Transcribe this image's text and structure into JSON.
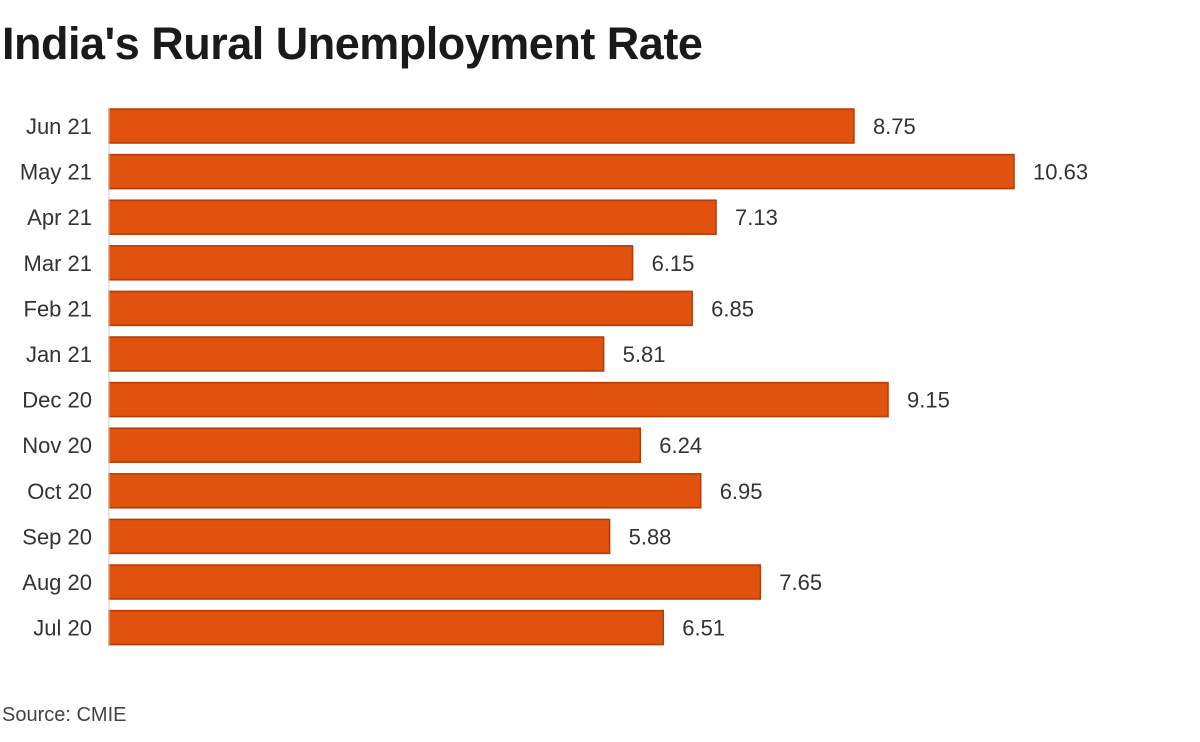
{
  "chart_data": {
    "type": "bar",
    "orientation": "horizontal",
    "title": "India's Rural Unemployment Rate",
    "categories": [
      "Jun 21",
      "May 21",
      "Apr 21",
      "Mar 21",
      "Feb 21",
      "Jan 21",
      "Dec 20",
      "Nov 20",
      "Oct 20",
      "Sep 20",
      "Aug 20",
      "Jul 20"
    ],
    "values": [
      8.75,
      10.63,
      7.13,
      6.15,
      6.85,
      5.81,
      9.15,
      6.24,
      6.95,
      5.88,
      7.65,
      6.51
    ],
    "xlabel": "",
    "ylabel": "",
    "xlim": [
      0,
      10.63
    ],
    "grid": false,
    "bar_color": "#e2520f",
    "bar_stroke": "#b33a06"
  },
  "source": "Source: CMIE"
}
